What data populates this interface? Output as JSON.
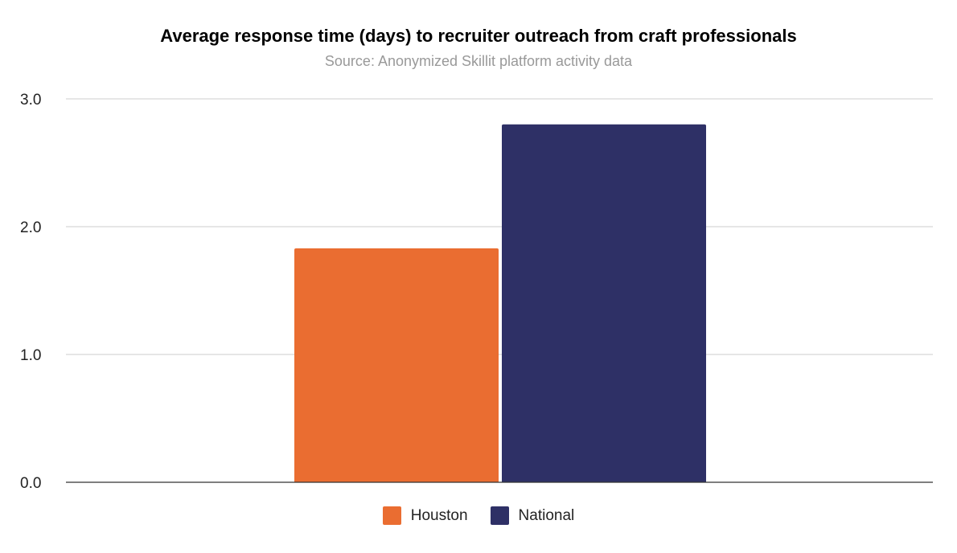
{
  "chart_data": {
    "type": "bar",
    "title": "Average response time (days) to recruiter outreach from craft professionals",
    "subtitle": "Source: Anonymized Skillit platform activity data",
    "xlabel": "",
    "ylabel": "",
    "categories": [
      ""
    ],
    "series": [
      {
        "name": "Houston",
        "values": [
          1.83
        ],
        "color": "#EA6D31"
      },
      {
        "name": "National",
        "values": [
          2.8
        ],
        "color": "#2E3066"
      }
    ],
    "ylim": [
      0,
      3
    ],
    "y_ticks": [
      "0.0",
      "1.0",
      "2.0",
      "3.0"
    ],
    "grid": true,
    "legend_position": "bottom"
  },
  "colors": {
    "gridline": "#cccccc",
    "baseline": "#333333",
    "subtitle": "#999999",
    "tick_label": "#222222"
  }
}
